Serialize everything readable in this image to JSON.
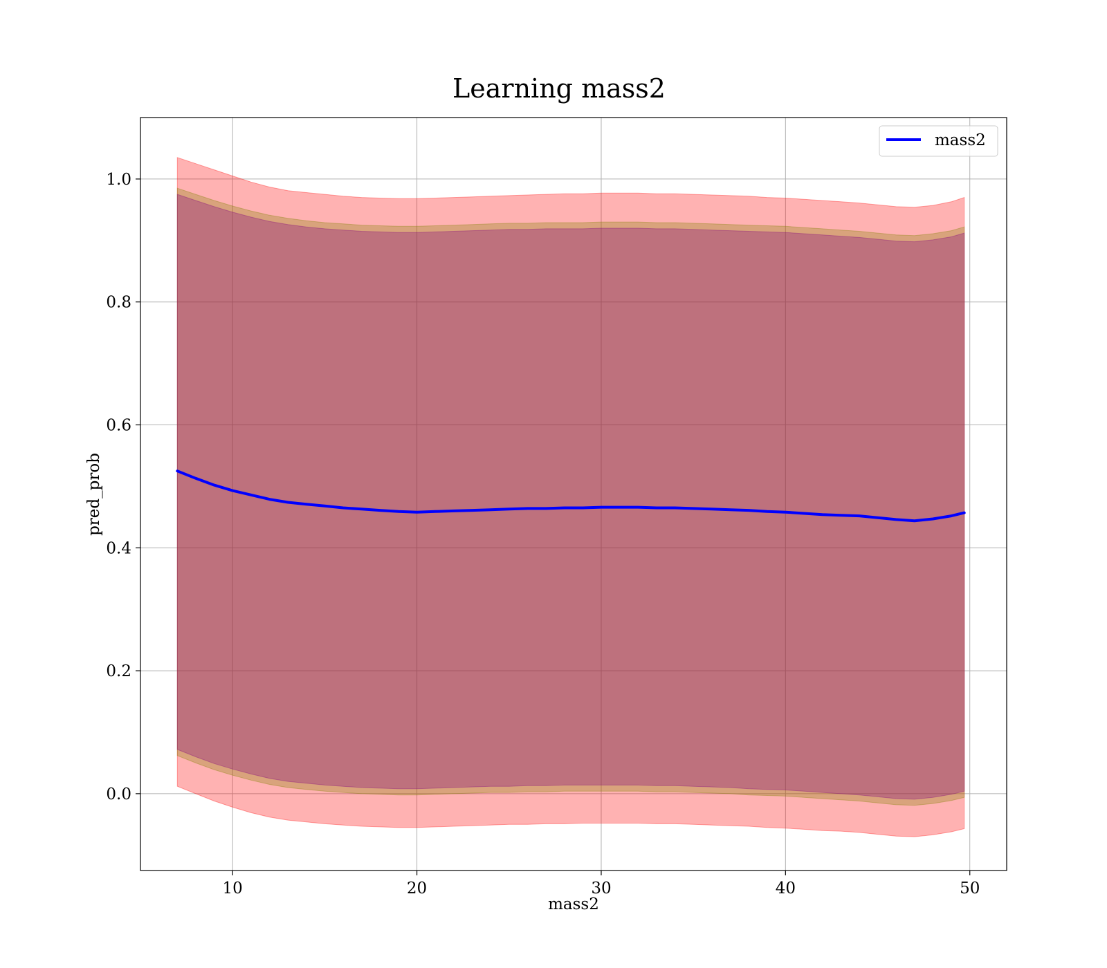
{
  "chart_data": {
    "type": "line",
    "title": "Learning mass2",
    "xlabel": "mass2",
    "ylabel": "pred_prob",
    "xlim": [
      5,
      52
    ],
    "ylim": [
      -0.125,
      1.1
    ],
    "x_ticks": [
      10,
      20,
      30,
      40,
      50
    ],
    "y_ticks": [
      0.0,
      0.2,
      0.4,
      0.6,
      0.8,
      1.0
    ],
    "x_tick_labels": [
      "10",
      "20",
      "30",
      "40",
      "50"
    ],
    "y_tick_labels": [
      "0.0",
      "0.2",
      "0.4",
      "0.6",
      "0.8",
      "1.0"
    ],
    "grid": true,
    "legend_placement": "top-right",
    "series": [
      {
        "name": "mass2",
        "color": "#0000ff",
        "x": [
          7,
          8,
          9,
          10,
          11,
          12,
          13,
          14,
          15,
          16,
          17,
          18,
          19,
          20,
          21,
          22,
          23,
          24,
          25,
          26,
          27,
          28,
          29,
          30,
          31,
          32,
          33,
          34,
          35,
          36,
          37,
          38,
          39,
          40,
          41,
          42,
          43,
          44,
          45,
          46,
          47,
          48,
          49,
          49.7
        ],
        "y": [
          0.525,
          0.513,
          0.502,
          0.493,
          0.486,
          0.479,
          0.474,
          0.471,
          0.468,
          0.465,
          0.463,
          0.461,
          0.459,
          0.458,
          0.459,
          0.46,
          0.461,
          0.462,
          0.463,
          0.464,
          0.464,
          0.465,
          0.465,
          0.466,
          0.466,
          0.466,
          0.465,
          0.465,
          0.464,
          0.463,
          0.462,
          0.461,
          0.459,
          0.458,
          0.456,
          0.454,
          0.453,
          0.452,
          0.449,
          0.446,
          0.444,
          0.447,
          0.452,
          0.457
        ]
      }
    ],
    "bands": [
      {
        "color": "#ff0000",
        "opacity": 0.3,
        "x": [
          7,
          8,
          9,
          10,
          11,
          12,
          13,
          14,
          15,
          16,
          17,
          18,
          19,
          20,
          21,
          22,
          23,
          24,
          25,
          26,
          27,
          28,
          29,
          30,
          31,
          32,
          33,
          34,
          35,
          36,
          37,
          38,
          39,
          40,
          41,
          42,
          43,
          44,
          45,
          46,
          47,
          48,
          49,
          49.7
        ],
        "upper": [
          1.035,
          1.025,
          1.015,
          1.005,
          0.995,
          0.987,
          0.981,
          0.978,
          0.975,
          0.972,
          0.97,
          0.969,
          0.968,
          0.968,
          0.969,
          0.97,
          0.971,
          0.972,
          0.973,
          0.974,
          0.975,
          0.976,
          0.976,
          0.977,
          0.977,
          0.977,
          0.976,
          0.976,
          0.975,
          0.974,
          0.973,
          0.972,
          0.97,
          0.969,
          0.967,
          0.965,
          0.963,
          0.961,
          0.958,
          0.955,
          0.954,
          0.957,
          0.963,
          0.97
        ],
        "lower": [
          0.012,
          0.0,
          -0.012,
          -0.022,
          -0.031,
          -0.038,
          -0.043,
          -0.046,
          -0.049,
          -0.051,
          -0.053,
          -0.054,
          -0.055,
          -0.055,
          -0.054,
          -0.053,
          -0.052,
          -0.051,
          -0.05,
          -0.05,
          -0.049,
          -0.049,
          -0.048,
          -0.048,
          -0.048,
          -0.048,
          -0.049,
          -0.049,
          -0.05,
          -0.051,
          -0.052,
          -0.053,
          -0.055,
          -0.056,
          -0.058,
          -0.06,
          -0.061,
          -0.063,
          -0.066,
          -0.069,
          -0.07,
          -0.067,
          -0.062,
          -0.057
        ]
      },
      {
        "color": "#808000",
        "opacity": 0.3,
        "x": [
          7,
          8,
          9,
          10,
          11,
          12,
          13,
          14,
          15,
          16,
          17,
          18,
          19,
          20,
          21,
          22,
          23,
          24,
          25,
          26,
          27,
          28,
          29,
          30,
          31,
          32,
          33,
          34,
          35,
          36,
          37,
          38,
          39,
          40,
          41,
          42,
          43,
          44,
          45,
          46,
          47,
          48,
          49,
          49.7
        ],
        "upper": [
          0.985,
          0.975,
          0.965,
          0.956,
          0.948,
          0.941,
          0.936,
          0.932,
          0.929,
          0.927,
          0.925,
          0.924,
          0.923,
          0.923,
          0.924,
          0.925,
          0.926,
          0.927,
          0.928,
          0.928,
          0.929,
          0.929,
          0.929,
          0.93,
          0.93,
          0.93,
          0.929,
          0.929,
          0.928,
          0.927,
          0.926,
          0.925,
          0.924,
          0.923,
          0.921,
          0.919,
          0.917,
          0.915,
          0.912,
          0.909,
          0.908,
          0.911,
          0.916,
          0.922
        ],
        "lower": [
          0.062,
          0.05,
          0.039,
          0.03,
          0.022,
          0.015,
          0.01,
          0.007,
          0.004,
          0.002,
          0.0,
          -0.001,
          -0.002,
          -0.002,
          -0.001,
          0.0,
          0.001,
          0.002,
          0.002,
          0.003,
          0.003,
          0.004,
          0.004,
          0.004,
          0.004,
          0.004,
          0.003,
          0.003,
          0.002,
          0.001,
          0.0,
          -0.002,
          -0.003,
          -0.004,
          -0.006,
          -0.008,
          -0.01,
          -0.012,
          -0.015,
          -0.018,
          -0.019,
          -0.016,
          -0.011,
          -0.006
        ]
      },
      {
        "color": "#800080",
        "opacity": 0.3,
        "x": [
          7,
          8,
          9,
          10,
          11,
          12,
          13,
          14,
          15,
          16,
          17,
          18,
          19,
          20,
          21,
          22,
          23,
          24,
          25,
          26,
          27,
          28,
          29,
          30,
          31,
          32,
          33,
          34,
          35,
          36,
          37,
          38,
          39,
          40,
          41,
          42,
          43,
          44,
          45,
          46,
          47,
          48,
          49,
          49.7
        ],
        "upper": [
          0.975,
          0.965,
          0.955,
          0.946,
          0.938,
          0.931,
          0.926,
          0.922,
          0.919,
          0.917,
          0.915,
          0.914,
          0.913,
          0.913,
          0.914,
          0.915,
          0.916,
          0.917,
          0.918,
          0.918,
          0.919,
          0.919,
          0.919,
          0.92,
          0.92,
          0.92,
          0.919,
          0.919,
          0.918,
          0.917,
          0.916,
          0.915,
          0.914,
          0.913,
          0.911,
          0.909,
          0.907,
          0.905,
          0.902,
          0.899,
          0.898,
          0.901,
          0.906,
          0.912
        ],
        "lower": [
          0.072,
          0.06,
          0.049,
          0.04,
          0.032,
          0.025,
          0.02,
          0.017,
          0.014,
          0.012,
          0.01,
          0.009,
          0.008,
          0.008,
          0.009,
          0.01,
          0.011,
          0.012,
          0.012,
          0.013,
          0.013,
          0.014,
          0.014,
          0.014,
          0.014,
          0.014,
          0.013,
          0.013,
          0.012,
          0.011,
          0.01,
          0.008,
          0.007,
          0.006,
          0.004,
          0.002,
          0.0,
          -0.002,
          -0.005,
          -0.008,
          -0.009,
          -0.006,
          -0.001,
          0.004
        ]
      }
    ]
  }
}
